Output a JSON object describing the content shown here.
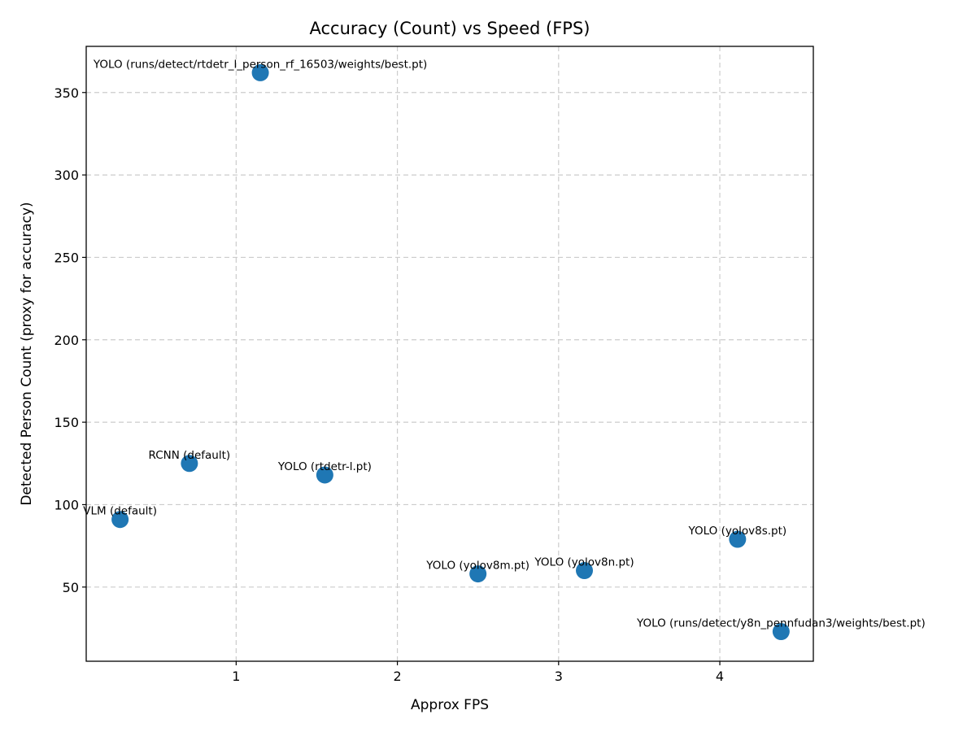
{
  "chart_data": {
    "type": "scatter",
    "title": "Accuracy (Count) vs Speed (FPS)",
    "xlabel": "Approx FPS",
    "ylabel": "Detected Person Count (proxy for accuracy)",
    "xlim": [
      0.07,
      4.58
    ],
    "ylim": [
      5,
      378
    ],
    "xticks": [
      1,
      2,
      3,
      4
    ],
    "yticks": [
      50,
      100,
      150,
      200,
      250,
      300,
      350
    ],
    "grid": true,
    "color": "#1f77b4",
    "points": [
      {
        "label": "VLM (default)",
        "x": 0.28,
        "y": 91
      },
      {
        "label": "RCNN (default)",
        "x": 0.71,
        "y": 125
      },
      {
        "label": "YOLO (runs/detect/rtdetr_l_person_rf_16503/weights/best.pt)",
        "x": 1.15,
        "y": 362
      },
      {
        "label": "YOLO (rtdetr-l.pt)",
        "x": 1.55,
        "y": 118
      },
      {
        "label": "YOLO (yolov8m.pt)",
        "x": 2.5,
        "y": 58
      },
      {
        "label": "YOLO (yolov8n.pt)",
        "x": 3.16,
        "y": 60
      },
      {
        "label": "YOLO (yolov8s.pt)",
        "x": 4.11,
        "y": 79
      },
      {
        "label": "YOLO (runs/detect/y8n_pennfudan3/weights/best.pt)",
        "x": 4.38,
        "y": 23
      }
    ]
  }
}
